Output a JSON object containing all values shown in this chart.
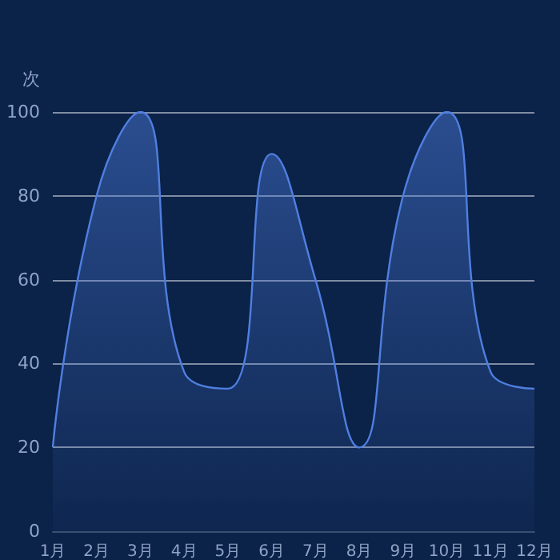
{
  "chart_data": {
    "type": "area",
    "ylabel": "次",
    "categories": [
      "1月",
      "2月",
      "3月",
      "4月",
      "5月",
      "6月",
      "7月",
      "8月",
      "9月",
      "10月",
      "11月",
      "12月"
    ],
    "series": [
      {
        "color": "#4f7fe0",
        "values": [
          20,
          80,
          100,
          38,
          34,
          90,
          60,
          20,
          80,
          100,
          38,
          34
        ]
      }
    ],
    "ylim": [
      0,
      100
    ],
    "yticks": [
      0,
      20,
      40,
      60,
      80,
      100
    ],
    "grid": "y",
    "marker": "none",
    "line_style": "solid"
  }
}
